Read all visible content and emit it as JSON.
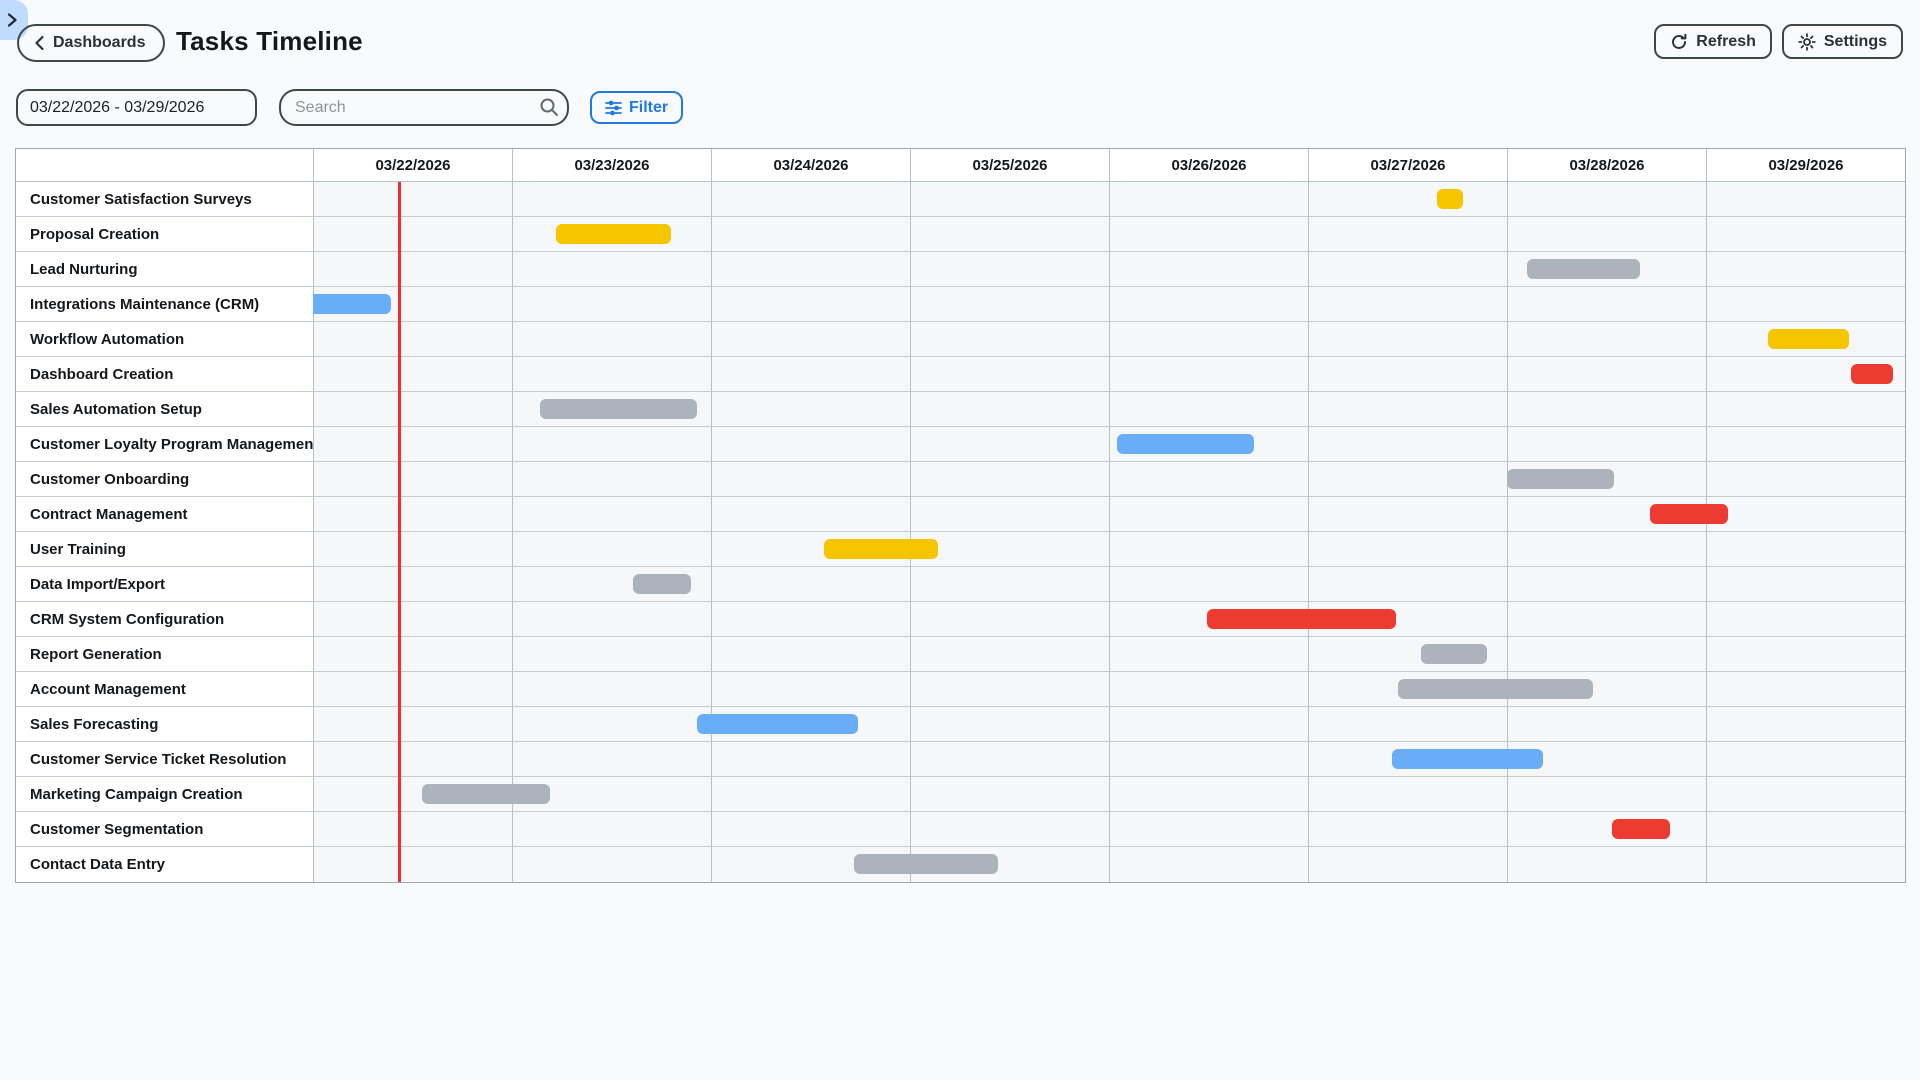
{
  "header": {
    "back_button": "Dashboards",
    "title": "Tasks Timeline",
    "refresh_button": "Refresh",
    "settings_button": "Settings"
  },
  "toolbar": {
    "date_range_value": "03/22/2026 - 03/29/2026",
    "search_placeholder": "Search",
    "filter_button": "Filter"
  },
  "colors": {
    "yellow": "#F5C500",
    "blue": "#68ADF6",
    "red": "#EE3B31",
    "gray": "#ACB3BC",
    "today_line": "#EF2F2F",
    "accent_blue": "#1F7AE0",
    "sidebar_tab": "#BFDBFE"
  },
  "chart_data": {
    "type": "gantt",
    "timeline_start_date": "03/22/2026",
    "columns": [
      "03/22/2026",
      "03/23/2026",
      "03/24/2026",
      "03/25/2026",
      "03/26/2026",
      "03/27/2026",
      "03/28/2026",
      "03/29/2026"
    ],
    "today_marker_day_offset": 0.435,
    "tasks": [
      {
        "name": "Customer Satisfaction Surveys",
        "color": "yellow",
        "start_day": 5.65,
        "duration_days": 0.13
      },
      {
        "name": "Proposal Creation",
        "color": "yellow",
        "start_day": 1.22,
        "duration_days": 0.58
      },
      {
        "name": "Lead Nurturing",
        "color": "gray",
        "start_day": 6.1,
        "duration_days": 0.57
      },
      {
        "name": "Integrations Maintenance (CRM)",
        "color": "blue",
        "start_day": 0.0,
        "duration_days": 0.39,
        "clip_left": true
      },
      {
        "name": "Workflow Automation",
        "color": "yellow",
        "start_day": 7.31,
        "duration_days": 0.41
      },
      {
        "name": "Dashboard Creation",
        "color": "red",
        "start_day": 7.73,
        "duration_days": 0.21
      },
      {
        "name": "Sales Automation Setup",
        "color": "gray",
        "start_day": 1.14,
        "duration_days": 0.79
      },
      {
        "name": "Customer Loyalty Program Management",
        "color": "blue",
        "start_day": 4.04,
        "duration_days": 0.69
      },
      {
        "name": "Customer Onboarding",
        "color": "gray",
        "start_day": 6.0,
        "duration_days": 0.54
      },
      {
        "name": "Contract Management",
        "color": "red",
        "start_day": 6.72,
        "duration_days": 0.39
      },
      {
        "name": "User Training",
        "color": "yellow",
        "start_day": 2.57,
        "duration_days": 0.57
      },
      {
        "name": "Data Import/Export",
        "color": "gray",
        "start_day": 1.61,
        "duration_days": 0.29
      },
      {
        "name": "CRM System Configuration",
        "color": "red",
        "start_day": 4.49,
        "duration_days": 0.95
      },
      {
        "name": "Report Generation",
        "color": "gray",
        "start_day": 5.57,
        "duration_days": 0.33
      },
      {
        "name": "Account Management",
        "color": "gray",
        "start_day": 5.45,
        "duration_days": 0.98
      },
      {
        "name": "Sales Forecasting",
        "color": "blue",
        "start_day": 1.93,
        "duration_days": 0.81
      },
      {
        "name": "Customer Service Ticket Resolution",
        "color": "blue",
        "start_day": 5.42,
        "duration_days": 0.76
      },
      {
        "name": "Marketing Campaign Creation",
        "color": "gray",
        "start_day": 0.55,
        "duration_days": 0.64
      },
      {
        "name": "Customer Segmentation",
        "color": "red",
        "start_day": 6.53,
        "duration_days": 0.29
      },
      {
        "name": "Contact Data Entry",
        "color": "gray",
        "start_day": 2.72,
        "duration_days": 0.72
      }
    ]
  }
}
